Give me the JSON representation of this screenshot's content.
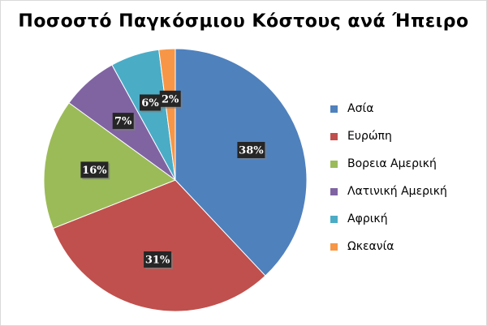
{
  "chart_data": {
    "type": "pie",
    "title": "Ποσοστό Παγκόσμιου Κόστους ανά Ήπειρο",
    "legend_position": "right",
    "slices": [
      {
        "label": "Ασία",
        "value": 38,
        "display": "38%",
        "color": "#4f81bd"
      },
      {
        "label": "Ευρώπη",
        "value": 31,
        "display": "31%",
        "color": "#c0504d"
      },
      {
        "label": "Βορεια Αμερική",
        "value": 16,
        "display": "16%",
        "color": "#9bbb59"
      },
      {
        "label": "Λατινική Αμερική",
        "value": 7,
        "display": "7%",
        "color": "#8064a2"
      },
      {
        "label": "Αφρική",
        "value": 6,
        "display": "6%",
        "color": "#4bacc6"
      },
      {
        "label": "Ωκεανία",
        "value": 2,
        "display": "2%",
        "color": "#f79646"
      }
    ]
  }
}
